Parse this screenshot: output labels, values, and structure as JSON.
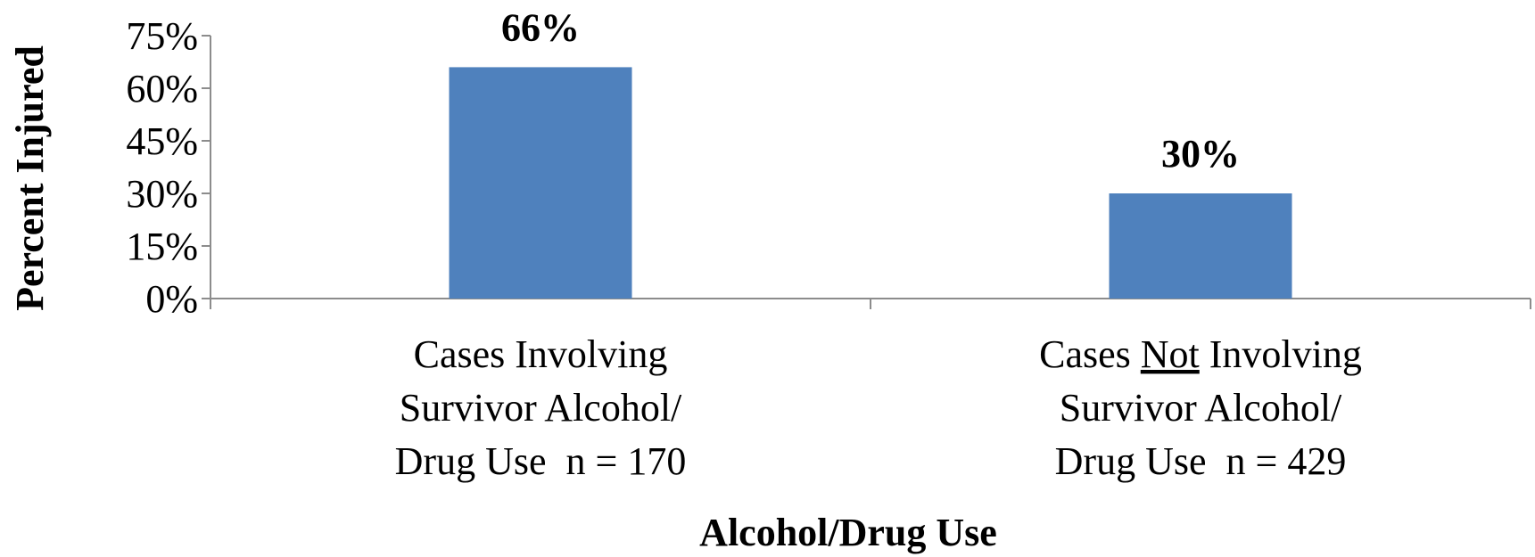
{
  "chart_data": {
    "type": "bar",
    "categories": [
      {
        "lines": [
          [
            {
              "text": "Cases Involving"
            }
          ],
          [
            {
              "text": "Survivor Alcohol/"
            }
          ],
          [
            {
              "text": "Drug Use  n = 170"
            }
          ]
        ]
      },
      {
        "lines": [
          [
            {
              "text": "Cases "
            },
            {
              "text": "Not",
              "underline": true
            },
            {
              "text": " Involving"
            }
          ],
          [
            {
              "text": "Survivor Alcohol/"
            }
          ],
          [
            {
              "text": "Drug Use  n = 429"
            }
          ]
        ]
      }
    ],
    "values": [
      66,
      30
    ],
    "data_labels": [
      "66%",
      "30%"
    ],
    "title": "",
    "xlabel": "Alcohol/Drug Use",
    "ylabel": "Percent Injured",
    "ylim": [
      0,
      75
    ],
    "yticks": [
      0,
      15,
      30,
      45,
      60,
      75
    ],
    "ytick_labels": [
      "0%",
      "15%",
      "30%",
      "45%",
      "60%",
      "75%"
    ],
    "grid": false,
    "legend": "none",
    "bar_color": "#4f81bd"
  }
}
